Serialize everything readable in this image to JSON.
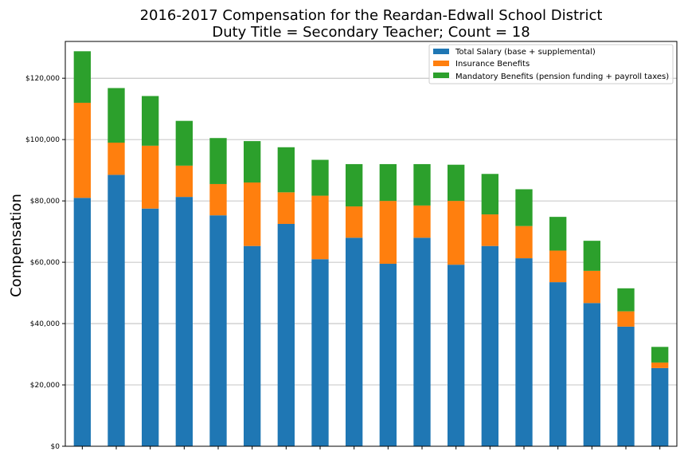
{
  "chart_data": {
    "type": "bar",
    "stacked": true,
    "title_lines": [
      "2016-2017 Compensation for the Reardan-Edwall School District",
      "Duty Title = Secondary Teacher; Count = 18"
    ],
    "xlabel": "",
    "ylabel": "Compensation",
    "ylim": [
      0,
      132000
    ],
    "y_ticks": [
      0,
      20000,
      40000,
      60000,
      80000,
      100000,
      120000
    ],
    "y_tick_labels": [
      "$0",
      "$20,000",
      "$40,000",
      "$60,000",
      "$80,000",
      "$100,000",
      "$120,000"
    ],
    "grid": "horizontal",
    "legend_position": "top-right",
    "categories_count": 18,
    "series": [
      {
        "name": "Total Salary (base + supplemental)",
        "color": "#1f77b4",
        "values": [
          81000,
          88500,
          77500,
          81300,
          75300,
          65300,
          72500,
          61000,
          68000,
          59500,
          68000,
          59200,
          65300,
          61300,
          53500,
          46700,
          39000,
          25500
        ]
      },
      {
        "name": "Insurance Benefits",
        "color": "#ff7f0e",
        "values": [
          31000,
          10500,
          20500,
          10200,
          10200,
          20700,
          10300,
          20700,
          10200,
          20500,
          10500,
          20800,
          10300,
          10500,
          10300,
          10500,
          5000,
          1800
        ]
      },
      {
        "name": "Mandatory Benefits (pension funding + payroll taxes)",
        "color": "#2ca02c",
        "values": [
          16800,
          17800,
          16200,
          14600,
          15000,
          13500,
          14700,
          11700,
          13800,
          12000,
          13500,
          11800,
          13200,
          12000,
          11000,
          9800,
          7500,
          5100
        ]
      }
    ]
  }
}
